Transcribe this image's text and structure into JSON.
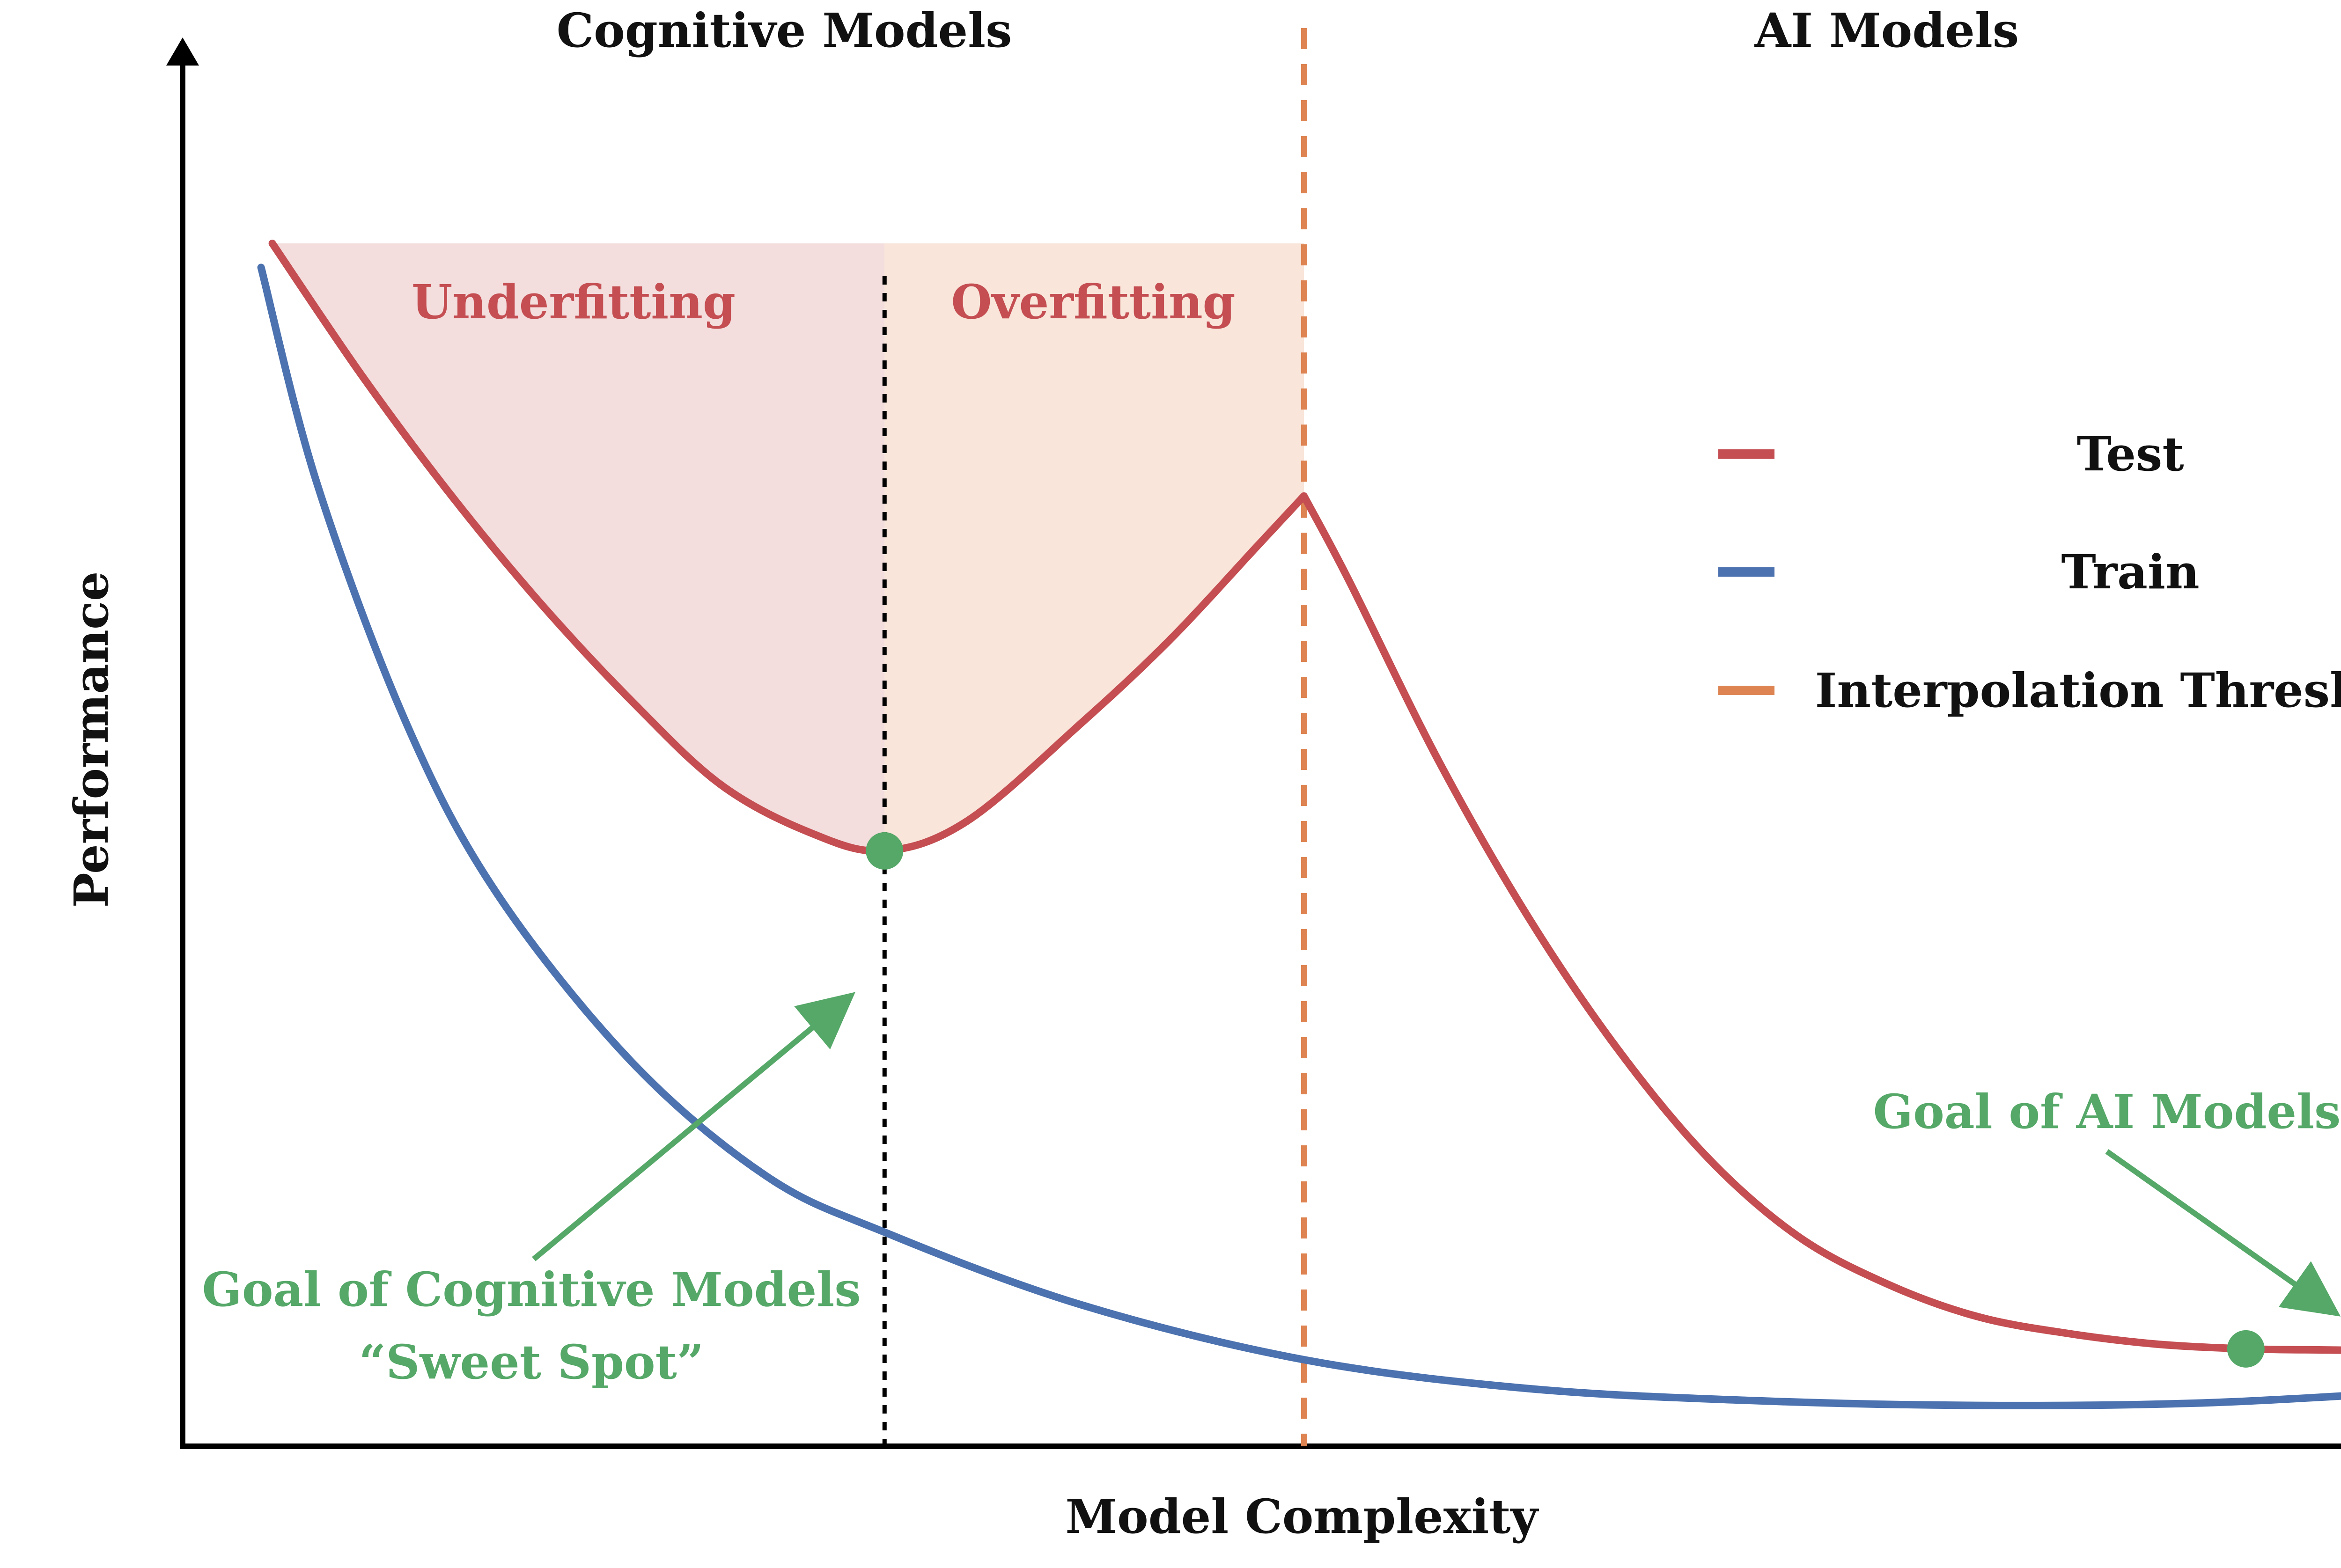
{
  "chart_data": {
    "type": "line",
    "xlabel": "Model Complexity",
    "ylabel": "Performance",
    "region_labels": {
      "left": "Cognitive Models",
      "right": "AI Models"
    },
    "zone_labels": {
      "underfitting": "Underfitting",
      "overfitting": "Overfitting"
    },
    "legend_position": "right",
    "legend": [
      {
        "key": "test",
        "label": "Test",
        "color": "#c44e52",
        "style": "solid"
      },
      {
        "key": "train",
        "label": "Train",
        "color": "#4c72b0",
        "style": "solid"
      },
      {
        "key": "threshold",
        "label": "Interpolation Threshold",
        "color": "#dd8452",
        "style": "dashed"
      }
    ],
    "annotations": {
      "cognitive_goal": {
        "line1": "Goal of Cognitive Models",
        "line2": "“Sweet Spot”"
      },
      "ai_goal": {
        "line1": "Goal of AI Models"
      }
    },
    "axes_ticks": false,
    "xlim": [
      0,
      1
    ],
    "ylim": [
      0,
      1
    ],
    "interpolation_threshold_x": 0.5,
    "sweet_spot_x": 0.313,
    "series": [
      {
        "name": "Test",
        "color": "#c44e52",
        "x": [
          0.04,
          0.08,
          0.12,
          0.16,
          0.2,
          0.24,
          0.28,
          0.313,
          0.35,
          0.4,
          0.44,
          0.48,
          0.5,
          0.52,
          0.56,
          0.6,
          0.64,
          0.68,
          0.72,
          0.76,
          0.8,
          0.84,
          0.88,
          0.92,
          0.96,
          1.0
        ],
        "y": [
          1.0,
          0.89,
          0.79,
          0.7,
          0.62,
          0.55,
          0.51,
          0.495,
          0.52,
          0.6,
          0.67,
          0.75,
          0.79,
          0.72,
          0.57,
          0.44,
          0.33,
          0.24,
          0.175,
          0.135,
          0.108,
          0.094,
          0.085,
          0.081,
          0.08,
          0.079
        ]
      },
      {
        "name": "Train",
        "color": "#4c72b0",
        "x": [
          0.035,
          0.06,
          0.1,
          0.14,
          0.2,
          0.26,
          0.313,
          0.4,
          0.5,
          0.6,
          0.7,
          0.8,
          0.9,
          1.0
        ],
        "y": [
          0.98,
          0.8,
          0.6,
          0.46,
          0.32,
          0.225,
          0.178,
          0.118,
          0.072,
          0.048,
          0.038,
          0.034,
          0.036,
          0.046
        ]
      }
    ]
  }
}
